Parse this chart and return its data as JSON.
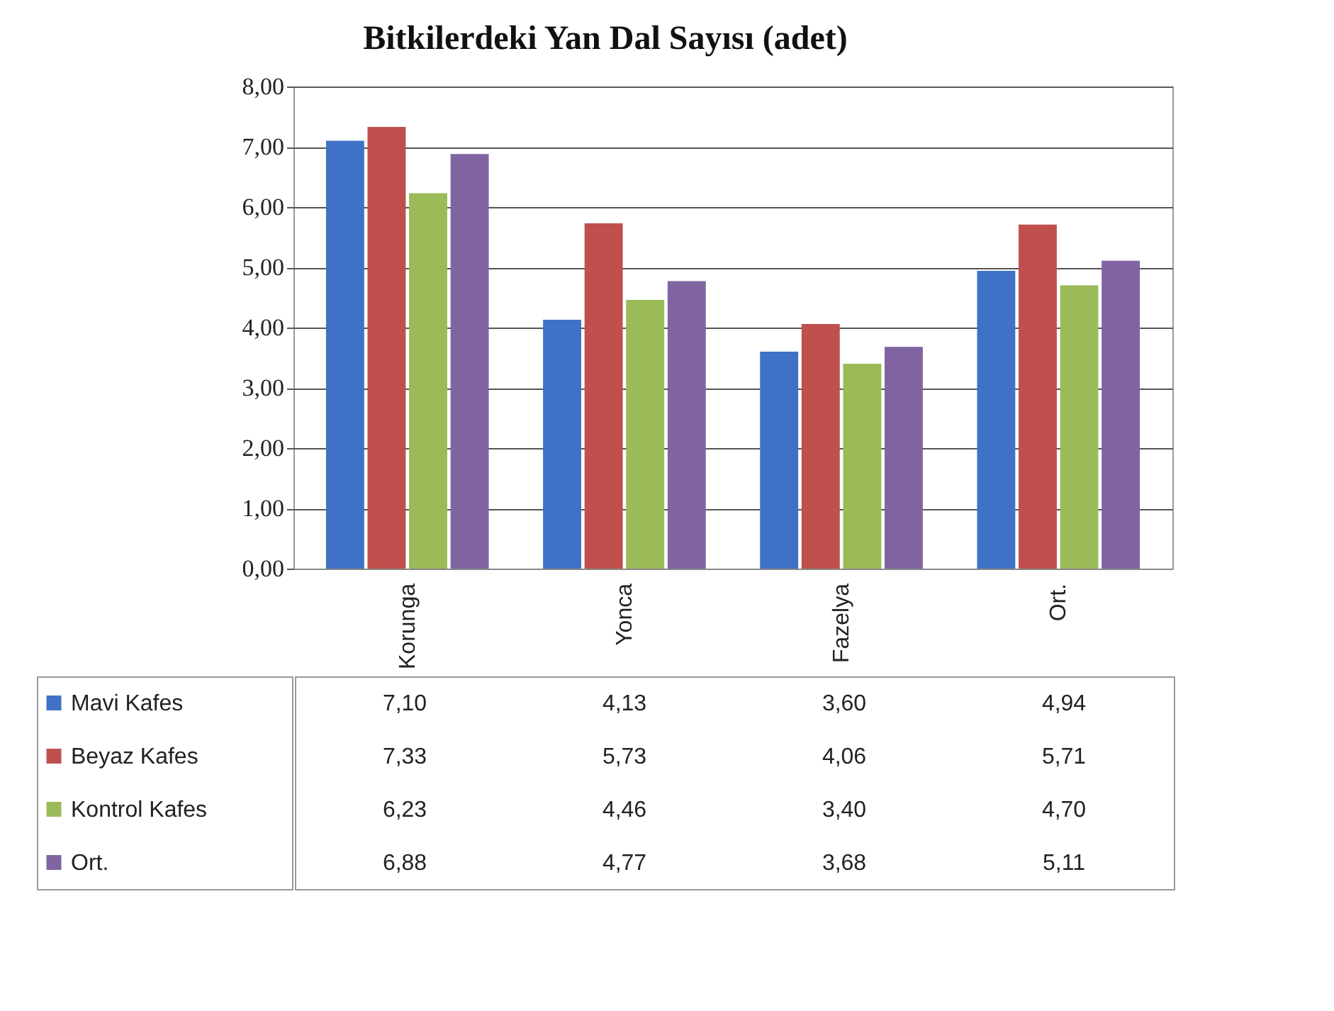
{
  "chart_data": {
    "type": "bar",
    "title": "Bitkilerdeki Yan Dal Sayısı (adet)",
    "categories": [
      "Korunga",
      "Yonca",
      "Fazelya",
      "Ort."
    ],
    "series": [
      {
        "name": "Mavi Kafes",
        "color": "#3f72c6",
        "values": [
          7.1,
          4.13,
          3.6,
          4.94
        ],
        "value_labels": [
          "7,10",
          "4,13",
          "3,60",
          "4,94"
        ]
      },
      {
        "name": "Beyaz Kafes",
        "color": "#c0504d",
        "values": [
          7.33,
          5.73,
          4.06,
          5.71
        ],
        "value_labels": [
          "7,33",
          "5,73",
          "4,06",
          "5,71"
        ]
      },
      {
        "name": "Kontrol Kafes",
        "color": "#9bbb59",
        "values": [
          6.23,
          4.46,
          3.4,
          4.7
        ],
        "value_labels": [
          "6,23",
          "4,46",
          "3,40",
          "4,70"
        ]
      },
      {
        "name": "Ort.",
        "color": "#8064a2",
        "values": [
          6.88,
          4.77,
          3.68,
          5.11
        ],
        "value_labels": [
          "6,88",
          "4,77",
          "3,68",
          "5,11"
        ]
      }
    ],
    "ylim": [
      0,
      8
    ],
    "yticks": [
      {
        "value": 0,
        "label": "0,00"
      },
      {
        "value": 1,
        "label": "1,00"
      },
      {
        "value": 2,
        "label": "2,00"
      },
      {
        "value": 3,
        "label": "3,00"
      },
      {
        "value": 4,
        "label": "4,00"
      },
      {
        "value": 5,
        "label": "5,00"
      },
      {
        "value": 6,
        "label": "6,00"
      },
      {
        "value": 7,
        "label": "7,00"
      },
      {
        "value": 8,
        "label": "8,00"
      }
    ],
    "grid": "y",
    "legend": "bottom"
  }
}
